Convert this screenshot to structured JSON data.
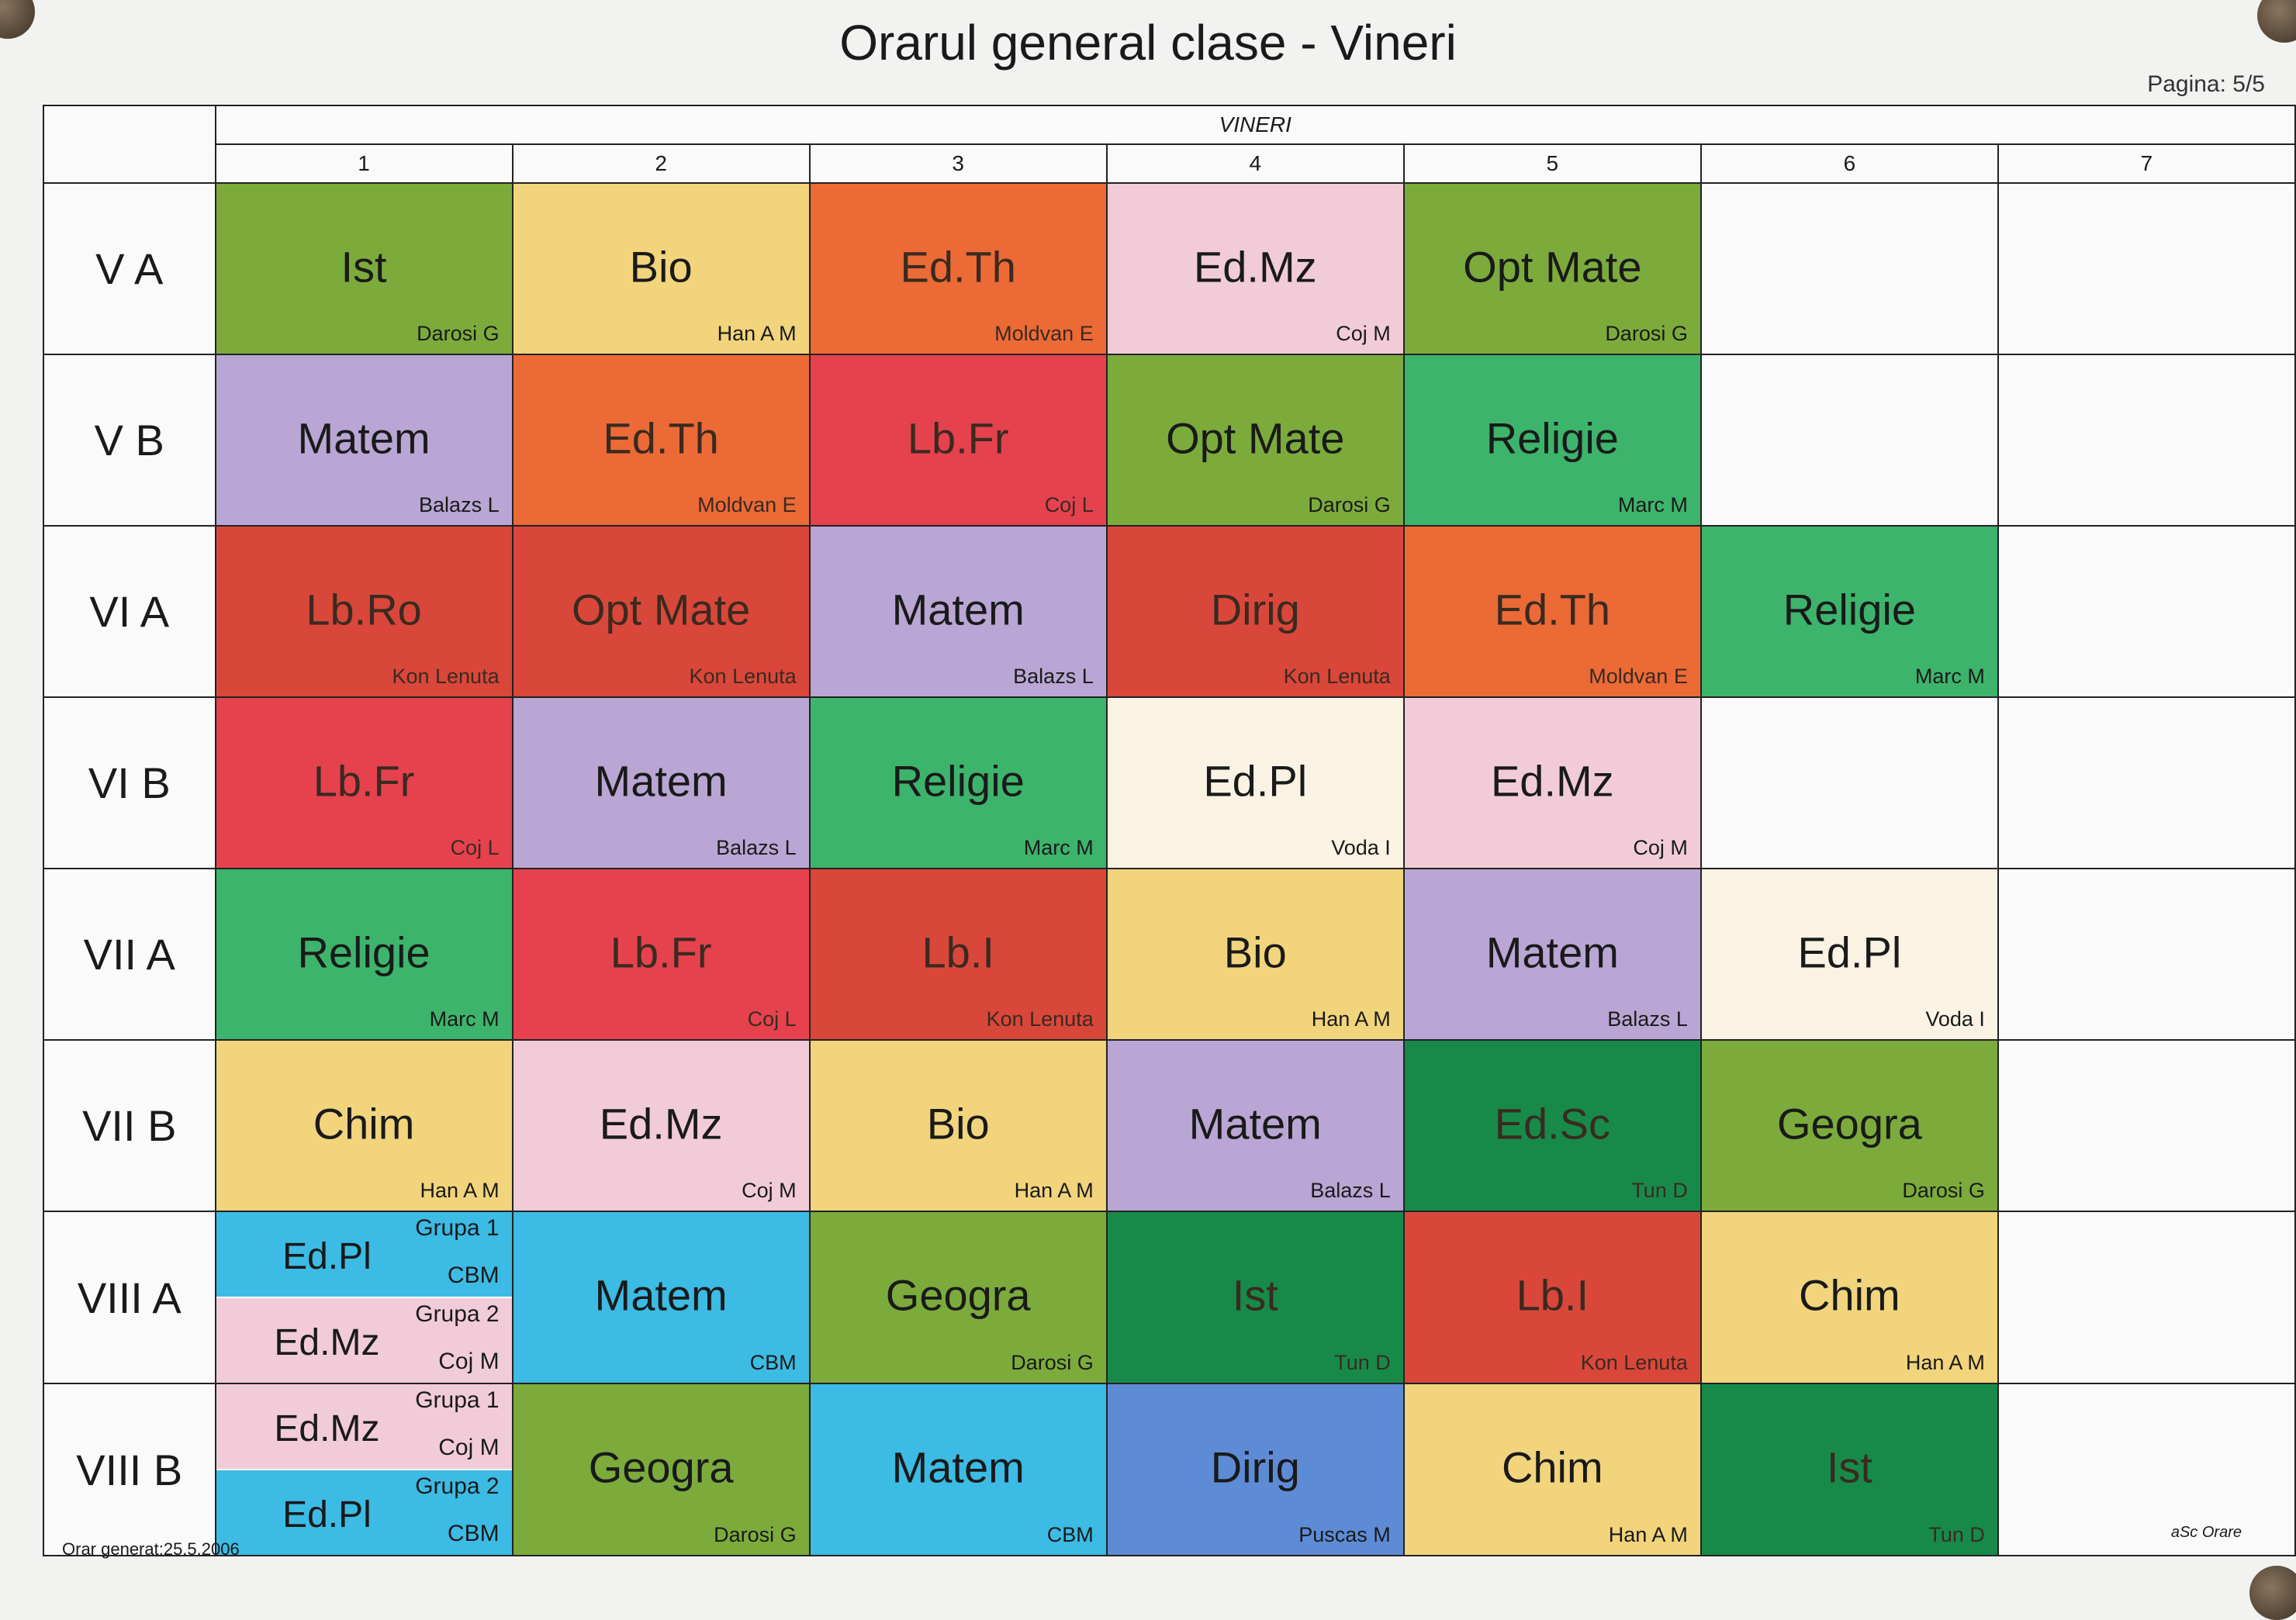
{
  "title": "Orarul general clase - Vineri",
  "page_label": "Pagina: 5/5",
  "day": "VINERI",
  "periods": [
    "1",
    "2",
    "3",
    "4",
    "5",
    "6",
    "7"
  ],
  "footer_left": "Orar generat:25.5.2006",
  "footer_right": "aSc Orare",
  "colors": {
    "olive": "#7cab3c",
    "yellow": "#f1d47c",
    "orange": "#ec6a36",
    "pink": "#f1ccd8",
    "purple": "#b9a6d4",
    "red": "#e5424e",
    "darkred": "#d9473a",
    "green": "#3db46c",
    "darkgreen": "#178a4a",
    "cyan": "#3cbbe4",
    "blue": "#5e8bd6",
    "cream": "#faf3e4"
  },
  "rows": [
    {
      "label": "V A",
      "cells": [
        {
          "subject": "Ist",
          "teacher": "Darosi G",
          "color": "olive"
        },
        {
          "subject": "Bio",
          "teacher": "Han  A M",
          "color": "yellow"
        },
        {
          "subject": "Ed.Th",
          "teacher": "Moldvan E",
          "color": "orange"
        },
        {
          "subject": "Ed.Mz",
          "teacher": "Coj M",
          "color": "pink"
        },
        {
          "subject": "Opt Mate",
          "teacher": "Darosi G",
          "color": "olive"
        },
        null,
        null
      ]
    },
    {
      "label": "V B",
      "cells": [
        {
          "subject": "Matem",
          "teacher": "Balazs L",
          "color": "purple"
        },
        {
          "subject": "Ed.Th",
          "teacher": "Moldvan E",
          "color": "orange"
        },
        {
          "subject": "Lb.Fr",
          "teacher": "Coj L",
          "color": "red"
        },
        {
          "subject": "Opt Mate",
          "teacher": "Darosi G",
          "color": "olive"
        },
        {
          "subject": "Religie",
          "teacher": "Marc M",
          "color": "green"
        },
        null,
        null
      ]
    },
    {
      "label": "VI A",
      "cells": [
        {
          "subject": "Lb.Ro",
          "teacher": "Kon Lenuta",
          "color": "darkred"
        },
        {
          "subject": "Opt Mate",
          "teacher": "Kon Lenuta",
          "color": "darkred"
        },
        {
          "subject": "Matem",
          "teacher": "Balazs L",
          "color": "purple"
        },
        {
          "subject": "Dirig",
          "teacher": "Kon Lenuta",
          "color": "darkred"
        },
        {
          "subject": "Ed.Th",
          "teacher": "Moldvan E",
          "color": "orange"
        },
        {
          "subject": "Religie",
          "teacher": "Marc M",
          "color": "green"
        },
        null
      ]
    },
    {
      "label": "VI B",
      "cells": [
        {
          "subject": "Lb.Fr",
          "teacher": "Coj L",
          "color": "red"
        },
        {
          "subject": "Matem",
          "teacher": "Balazs L",
          "color": "purple"
        },
        {
          "subject": "Religie",
          "teacher": "Marc M",
          "color": "green"
        },
        {
          "subject": "Ed.Pl",
          "teacher": "Voda I",
          "color": "cream"
        },
        {
          "subject": "Ed.Mz",
          "teacher": "Coj M",
          "color": "pink"
        },
        null,
        null
      ]
    },
    {
      "label": "VII A",
      "cells": [
        {
          "subject": "Religie",
          "teacher": "Marc M",
          "color": "green"
        },
        {
          "subject": "Lb.Fr",
          "teacher": "Coj L",
          "color": "red"
        },
        {
          "subject": "Lb.I",
          "teacher": "Kon Lenuta",
          "color": "darkred"
        },
        {
          "subject": "Bio",
          "teacher": "Han  A M",
          "color": "yellow"
        },
        {
          "subject": "Matem",
          "teacher": "Balazs L",
          "color": "purple"
        },
        {
          "subject": "Ed.Pl",
          "teacher": "Voda I",
          "color": "cream"
        },
        null
      ]
    },
    {
      "label": "VII B",
      "cells": [
        {
          "subject": "Chim",
          "teacher": "Han  A M",
          "color": "yellow"
        },
        {
          "subject": "Ed.Mz",
          "teacher": "Coj M",
          "color": "pink"
        },
        {
          "subject": "Bio",
          "teacher": "Han  A M",
          "color": "yellow"
        },
        {
          "subject": "Matem",
          "teacher": "Balazs L",
          "color": "purple"
        },
        {
          "subject": "Ed.Sc",
          "teacher": "Tun D",
          "color": "darkgreen"
        },
        {
          "subject": "Geogra",
          "teacher": "Darosi G",
          "color": "olive"
        },
        null
      ]
    },
    {
      "label": "VIII A",
      "cells": [
        {
          "split": [
            {
              "subject": "Ed.Pl",
              "group": "Grupa 1",
              "teacher": "CBM",
              "color": "cyan"
            },
            {
              "subject": "Ed.Mz",
              "group": "Grupa 2",
              "teacher": "Coj M",
              "color": "pink"
            }
          ]
        },
        {
          "subject": "Matem",
          "teacher": "CBM",
          "color": "cyan"
        },
        {
          "subject": "Geogra",
          "teacher": "Darosi G",
          "color": "olive"
        },
        {
          "subject": "Ist",
          "teacher": "Tun D",
          "color": "darkgreen"
        },
        {
          "subject": "Lb.I",
          "teacher": "Kon Lenuta",
          "color": "darkred"
        },
        {
          "subject": "Chim",
          "teacher": "Han  A M",
          "color": "yellow"
        },
        null
      ]
    },
    {
      "label": "VIII B",
      "cells": [
        {
          "split": [
            {
              "subject": "Ed.Mz",
              "group": "Grupa 1",
              "teacher": "Coj M",
              "color": "pink"
            },
            {
              "subject": "Ed.Pl",
              "group": "Grupa 2",
              "teacher": "CBM",
              "color": "cyan"
            }
          ]
        },
        {
          "subject": "Geogra",
          "teacher": "Darosi G",
          "color": "olive"
        },
        {
          "subject": "Matem",
          "teacher": "CBM",
          "color": "cyan"
        },
        {
          "subject": "Dirig",
          "teacher": "Puscas M",
          "color": "blue"
        },
        {
          "subject": "Chim",
          "teacher": "Han  A M",
          "color": "yellow"
        },
        {
          "subject": "Ist",
          "teacher": "Tun D",
          "color": "darkgreen"
        },
        null
      ]
    }
  ]
}
